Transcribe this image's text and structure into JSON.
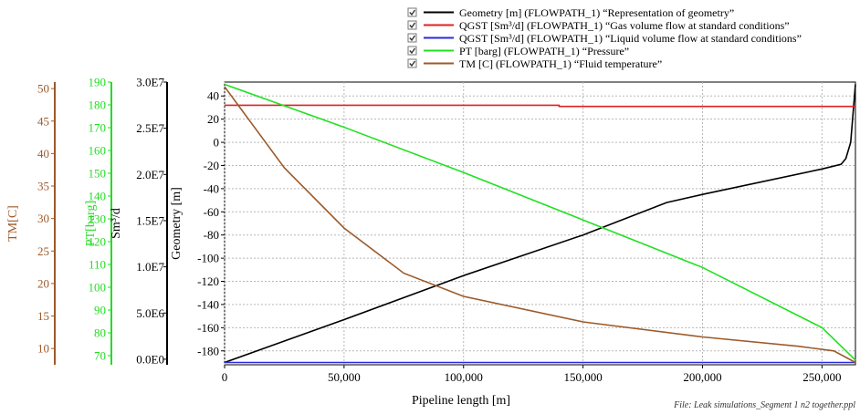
{
  "file_label": "File: Leak simulations_Segment 1 n2 together.ppl",
  "chart_data": {
    "type": "line",
    "xlabel": "Pipeline length [m]",
    "xlim": [
      0,
      264000
    ],
    "xticks": [
      0,
      50000,
      100000,
      150000,
      200000,
      250000
    ],
    "xtick_labels": [
      "0",
      "50,000",
      "100,000",
      "150,000",
      "200,000",
      "250,000"
    ],
    "grid": true,
    "legend_position": "top-center",
    "axes": [
      {
        "id": "tm",
        "label": "TM[C]",
        "color": "#9c5a2a",
        "lim": [
          7.5,
          51
        ],
        "ticks": [
          10,
          15,
          20,
          25,
          30,
          35,
          40,
          45,
          50
        ],
        "tick_labels": [
          "10",
          "15",
          "20",
          "25",
          "30",
          "35",
          "40",
          "45",
          "50"
        ]
      },
      {
        "id": "pt",
        "label": "PT[barg]",
        "color": "#22dd22",
        "lim": [
          66,
          190
        ],
        "ticks": [
          70,
          80,
          90,
          100,
          110,
          120,
          130,
          140,
          150,
          160,
          170,
          180,
          190
        ],
        "tick_labels": [
          "70",
          "80",
          "90",
          "100",
          "110",
          "120",
          "130",
          "140",
          "150",
          "160",
          "170",
          "180",
          "190"
        ]
      },
      {
        "id": "flow",
        "label": "Sm³/d",
        "color": "#000000",
        "lim": [
          -600000.0,
          30000000.0
        ],
        "ticks": [
          0,
          5000000.0,
          10000000.0,
          15000000.0,
          20000000.0,
          25000000.0,
          30000000.0
        ],
        "tick_labels": [
          "0.0E0",
          "5.0E6",
          "1.0E7",
          "1.5E7",
          "2.0E7",
          "2.5E7",
          "3.0E7"
        ]
      },
      {
        "id": "geom",
        "label": "Geometry [m]",
        "color": "#000000",
        "lim": [
          -192,
          52
        ],
        "ticks": [
          -180,
          -160,
          -140,
          -120,
          -100,
          -80,
          -60,
          -40,
          -20,
          0,
          20,
          40
        ],
        "tick_labels": [
          "-180",
          "-160",
          "-140",
          "-120",
          "-100",
          "-80",
          "-60",
          "-40",
          "-20",
          "0",
          "20",
          "40"
        ]
      }
    ],
    "series": [
      {
        "name": "Geometry [m] (FLOWPATH_1) “Representation of geometry”",
        "axis": "geom",
        "color": "#000000",
        "x": [
          0,
          50000,
          100000,
          150000,
          185000,
          200000,
          250000,
          258000,
          260000,
          262000,
          264000
        ],
        "y": [
          -190,
          -153,
          -115,
          -80,
          -52,
          -45,
          -23,
          -19,
          -14,
          0,
          50
        ]
      },
      {
        "name": "QGST [Sm³/d] (FLOWPATH_1) “Gas volume flow at standard conditions”",
        "axis": "geom",
        "color": "#e02020",
        "x": [
          0,
          140000,
          140000,
          264000
        ],
        "y": [
          32,
          32,
          31,
          31
        ]
      },
      {
        "name": "QGST [Sm³/d] (FLOWPATH_1) “Liquid volume flow at standard conditions”",
        "axis": "geom",
        "color": "#2a2ae0",
        "x": [
          0,
          264000
        ],
        "y": [
          -190,
          -190
        ]
      },
      {
        "name": "PT [barg] (FLOWPATH_1) “Pressure”",
        "axis": "geom",
        "color": "#22e022",
        "x": [
          0,
          50000,
          100000,
          150000,
          200000,
          250000,
          264000
        ],
        "y": [
          50,
          13,
          -26,
          -67,
          -108,
          -160,
          -188
        ]
      },
      {
        "name": "TM [C] (FLOWPATH_1) “Fluid temperature”",
        "axis": "geom",
        "color": "#9c5a2a",
        "x": [
          0,
          10000,
          25000,
          50000,
          75000,
          100000,
          150000,
          200000,
          240000,
          255000,
          264000
        ],
        "y": [
          48,
          20,
          -22,
          -74,
          -113,
          -133,
          -155,
          -168,
          -176,
          -180,
          -190
        ]
      }
    ]
  }
}
